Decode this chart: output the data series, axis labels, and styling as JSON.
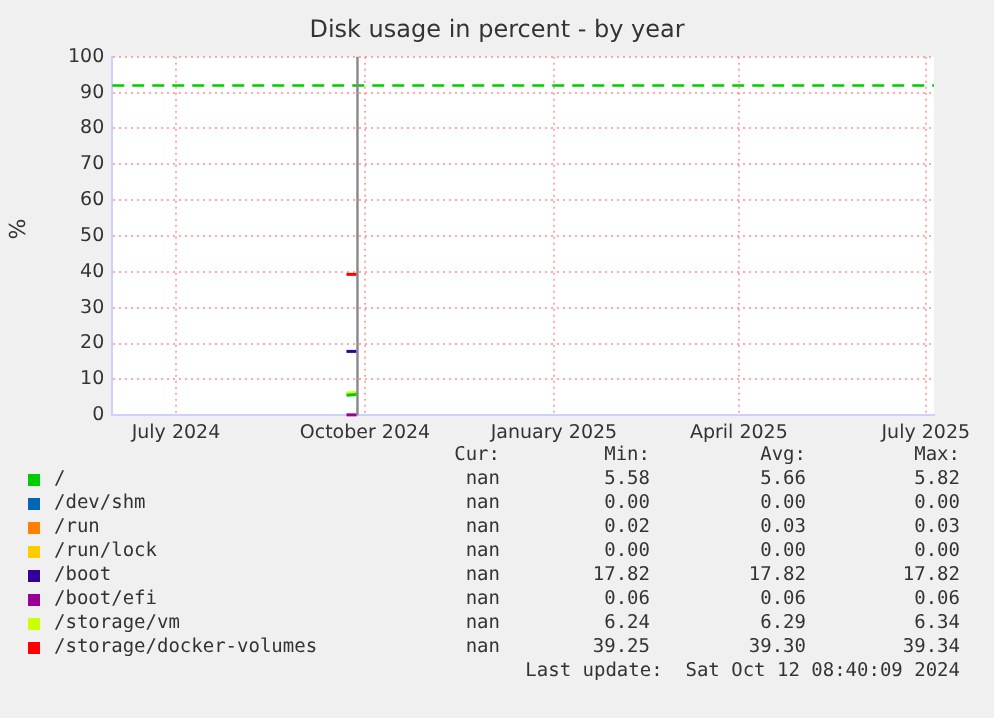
{
  "chart_data": {
    "type": "line",
    "title": "Disk usage in percent - by year",
    "ylabel": "%",
    "xlim": [
      "2024-06-15",
      "2025-07-20"
    ],
    "xticks": [
      {
        "value": "2024-07-16",
        "label": "July 2024"
      },
      {
        "value": "2024-10-16",
        "label": "October 2024"
      },
      {
        "value": "2025-01-16",
        "label": "January 2025"
      },
      {
        "value": "2025-04-16",
        "label": "April 2025"
      },
      {
        "value": "2025-07-16",
        "label": "July 2025"
      }
    ],
    "ylim": [
      0,
      100
    ],
    "yticks": [
      0,
      10,
      20,
      30,
      40,
      50,
      60,
      70,
      80,
      90,
      100
    ],
    "grid": true,
    "legend": "bottom",
    "marker": "none",
    "series": [
      {
        "name": "/",
        "color": "#00cc00",
        "x": [
          "2024-10-07",
          "2024-10-12"
        ],
        "values": [
          5.6,
          5.8
        ]
      },
      {
        "name": "/dev/shm",
        "color": "#0066b3",
        "values": [
          null,
          null
        ]
      },
      {
        "name": "/run",
        "color": "#ff8000",
        "values": [
          null,
          null
        ]
      },
      {
        "name": "/run/lock",
        "color": "#ffcc00",
        "values": [
          null,
          null
        ]
      },
      {
        "name": "/boot",
        "color": "#330099",
        "x": [
          "2024-10-07",
          "2024-10-12"
        ],
        "values": [
          17.8,
          17.8
        ]
      },
      {
        "name": "/boot/efi",
        "color": "#990099",
        "x": [
          "2024-10-07",
          "2024-10-12"
        ],
        "values": [
          0.1,
          0.1
        ]
      },
      {
        "name": "/storage/vm",
        "color": "#ccff00",
        "x": [
          "2024-10-07",
          "2024-10-12"
        ],
        "values": [
          6.2,
          6.3
        ]
      },
      {
        "name": "/storage/docker-volumes",
        "color": "#ff0000",
        "x": [
          "2024-10-07",
          "2024-10-12"
        ],
        "values": [
          39.3,
          39.3
        ]
      }
    ],
    "ref_lines": [
      {
        "axis": "y",
        "value": 92,
        "color": "#00cc00",
        "line_style": "dashed"
      },
      {
        "axis": "x",
        "value": "2024-10-12T08:40",
        "color": "#888888",
        "line_style": "solid"
      }
    ],
    "annotations": [
      "Cur:",
      "Min:",
      "Avg:",
      "Max:",
      "nan",
      "5.58",
      "5.66",
      "5.82",
      "nan",
      "0.00",
      "0.00",
      "0.00",
      "nan",
      "0.02",
      "0.03",
      "0.03",
      "nan",
      "0.00",
      "0.00",
      "0.00",
      "nan",
      "17.82",
      "17.82",
      "17.82",
      "nan",
      "0.06",
      "0.06",
      "0.06",
      "nan",
      "6.24",
      "6.29",
      "6.34",
      "nan",
      "39.25",
      "39.30",
      "39.34",
      "Last update:  Sat Oct 12 08:40:09 2024"
    ]
  }
}
